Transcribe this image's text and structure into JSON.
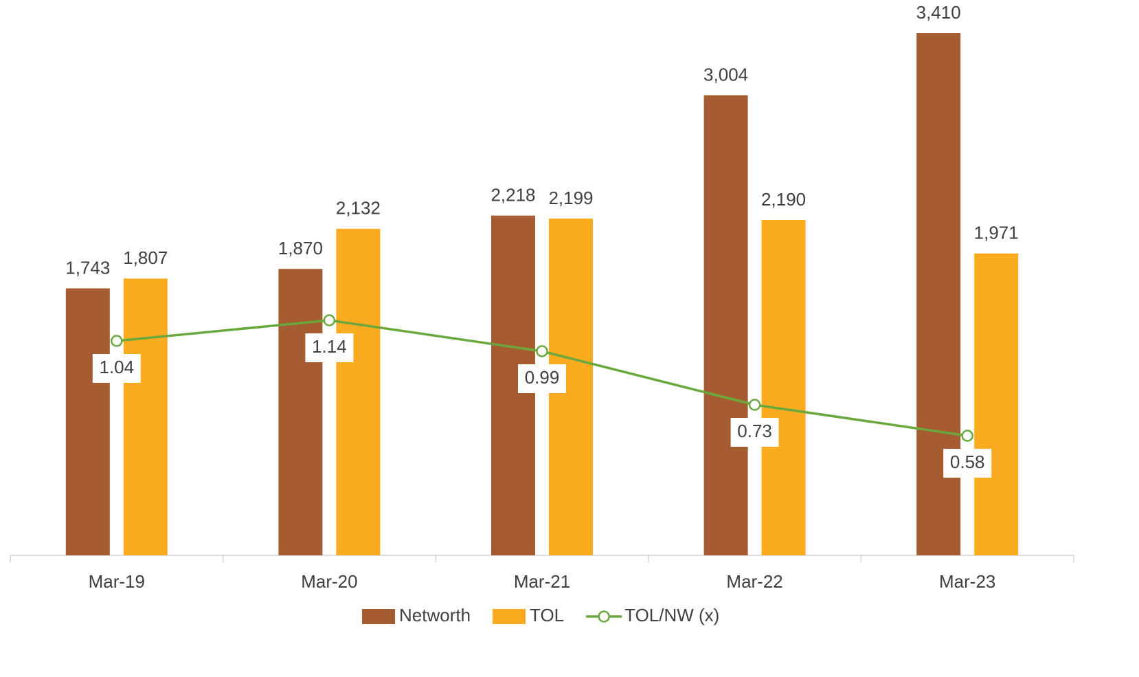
{
  "chart_data": {
    "type": "bar-line",
    "categories": [
      "Mar-19",
      "Mar-20",
      "Mar-21",
      "Mar-22",
      "Mar-23"
    ],
    "series": [
      {
        "name": "Networth",
        "type": "bar",
        "color": "#a55c31",
        "values": [
          1743,
          1870,
          2218,
          3004,
          3410
        ],
        "value_labels": [
          "1,743",
          "1,870",
          "2,218",
          "3,004",
          "3,410"
        ]
      },
      {
        "name": "TOL",
        "type": "bar",
        "color": "#fbab1f",
        "values": [
          1807,
          2132,
          2199,
          2190,
          1971
        ],
        "value_labels": [
          "1,807",
          "2,132",
          "2,199",
          "2,190",
          "1,971"
        ]
      },
      {
        "name": "TOL/NW (x)",
        "type": "line",
        "axis": "y2",
        "color": "#6aa83d",
        "values": [
          1.04,
          1.14,
          0.99,
          0.73,
          0.58
        ]
      }
    ],
    "ylim": [
      0,
      3500
    ],
    "y2lim": [
      0,
      2.6
    ],
    "legend": "bottom"
  }
}
